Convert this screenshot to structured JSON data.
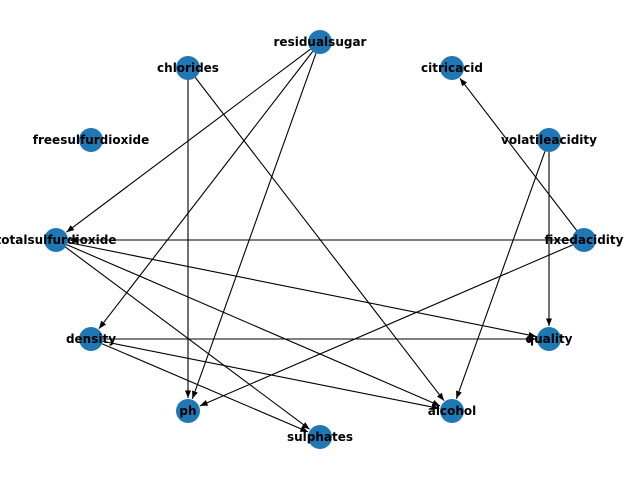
{
  "colors": {
    "node": "#1f77b4",
    "edge": "#000000",
    "label": "#000000"
  },
  "graph": {
    "nodes": [
      {
        "id": "residualsugar",
        "label": "residualsugar"
      },
      {
        "id": "chlorides",
        "label": "chlorides"
      },
      {
        "id": "citricacid",
        "label": "citricacid"
      },
      {
        "id": "freesulfurdioxide",
        "label": "freesulfurdioxide"
      },
      {
        "id": "volatileacidity",
        "label": "volatileacidity"
      },
      {
        "id": "totalsulfurdioxide",
        "label": "totalsulfurdioxide"
      },
      {
        "id": "fixedacidity",
        "label": "fixedacidity"
      },
      {
        "id": "density",
        "label": "density"
      },
      {
        "id": "quality",
        "label": "quality"
      },
      {
        "id": "ph",
        "label": "ph"
      },
      {
        "id": "alcohol",
        "label": "alcohol"
      },
      {
        "id": "sulphates",
        "label": "sulphates"
      }
    ],
    "edges": [
      {
        "from": "residualsugar",
        "to": "totalsulfurdioxide"
      },
      {
        "from": "residualsugar",
        "to": "density"
      },
      {
        "from": "residualsugar",
        "to": "ph"
      },
      {
        "from": "chlorides",
        "to": "ph"
      },
      {
        "from": "chlorides",
        "to": "alcohol"
      },
      {
        "from": "volatileacidity",
        "to": "quality"
      },
      {
        "from": "volatileacidity",
        "to": "alcohol"
      },
      {
        "from": "fixedacidity",
        "to": "citricacid"
      },
      {
        "from": "fixedacidity",
        "to": "totalsulfurdioxide"
      },
      {
        "from": "fixedacidity",
        "to": "ph"
      },
      {
        "from": "totalsulfurdioxide",
        "to": "quality"
      },
      {
        "from": "totalsulfurdioxide",
        "to": "alcohol"
      },
      {
        "from": "totalsulfurdioxide",
        "to": "sulphates"
      },
      {
        "from": "density",
        "to": "quality"
      },
      {
        "from": "density",
        "to": "alcohol"
      },
      {
        "from": "density",
        "to": "sulphates"
      }
    ]
  }
}
